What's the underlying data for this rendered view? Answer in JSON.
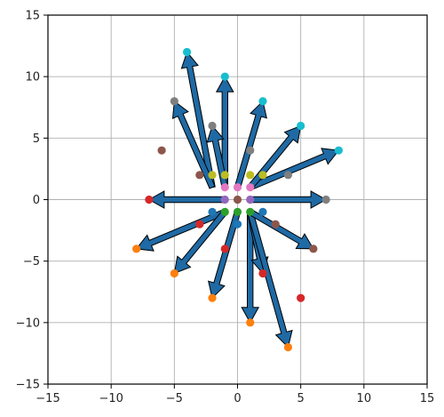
{
  "chart_data": {
    "type": "scatter",
    "subtype": "quiver",
    "title": "",
    "xlabel": "",
    "ylabel": "",
    "xlim": [
      -15,
      15
    ],
    "ylim": [
      -15,
      15
    ],
    "xticks": [
      -15,
      -10,
      -5,
      0,
      5,
      10,
      15
    ],
    "yticks": [
      -15,
      -10,
      -5,
      0,
      5,
      10,
      15
    ],
    "x_tick_labels": [
      "−15",
      "−10",
      "−5",
      "0",
      "5",
      "10",
      "15"
    ],
    "y_tick_labels": [
      "−15",
      "−10",
      "−5",
      "0",
      "5",
      "10",
      "15"
    ],
    "grid": true,
    "arrow_color": "#1f6aa5",
    "point_colors": {
      "blue": "#1f77b4",
      "orange": "#ff7f0e",
      "green": "#2ca02c",
      "red": "#d62728",
      "purple": "#9467bd",
      "brown": "#8c564b",
      "pink": "#e377c2",
      "gray": "#7f7f7f",
      "olive": "#bcbd22",
      "cyan": "#17becf"
    },
    "points": [
      {
        "x": -1,
        "y": -1,
        "color": "green"
      },
      {
        "x": 0,
        "y": -1,
        "color": "green"
      },
      {
        "x": 1,
        "y": -1,
        "color": "green"
      },
      {
        "x": -1,
        "y": 0,
        "color": "purple"
      },
      {
        "x": 0,
        "y": 0,
        "color": "brown"
      },
      {
        "x": 1,
        "y": 0,
        "color": "purple"
      },
      {
        "x": -1,
        "y": 1,
        "color": "pink"
      },
      {
        "x": 0,
        "y": 1,
        "color": "pink"
      },
      {
        "x": 1,
        "y": 1,
        "color": "pink"
      },
      {
        "x": -2,
        "y": 2,
        "color": "olive"
      },
      {
        "x": -1,
        "y": 2,
        "color": "olive"
      },
      {
        "x": 1,
        "y": 2,
        "color": "olive"
      },
      {
        "x": 2,
        "y": 2,
        "color": "olive"
      },
      {
        "x": -2,
        "y": -1,
        "color": "blue"
      },
      {
        "x": 0,
        "y": -2,
        "color": "blue"
      },
      {
        "x": 2,
        "y": -1,
        "color": "blue"
      },
      {
        "x": -3,
        "y": -2,
        "color": "red"
      },
      {
        "x": -7,
        "y": 0,
        "color": "red"
      },
      {
        "x": -1,
        "y": -4,
        "color": "red"
      },
      {
        "x": 2,
        "y": -6,
        "color": "red"
      },
      {
        "x": 5,
        "y": -8,
        "color": "red"
      },
      {
        "x": -8,
        "y": -4,
        "color": "orange"
      },
      {
        "x": -5,
        "y": -6,
        "color": "orange"
      },
      {
        "x": -2,
        "y": -8,
        "color": "orange"
      },
      {
        "x": 1,
        "y": -10,
        "color": "orange"
      },
      {
        "x": 4,
        "y": -12,
        "color": "orange"
      },
      {
        "x": -6,
        "y": 4,
        "color": "brown"
      },
      {
        "x": -3,
        "y": 2,
        "color": "brown"
      },
      {
        "x": 3,
        "y": -2,
        "color": "brown"
      },
      {
        "x": 6,
        "y": -4,
        "color": "brown"
      },
      {
        "x": -5,
        "y": 8,
        "color": "gray"
      },
      {
        "x": -2,
        "y": 6,
        "color": "gray"
      },
      {
        "x": 1,
        "y": 4,
        "color": "gray"
      },
      {
        "x": 4,
        "y": 2,
        "color": "gray"
      },
      {
        "x": 7,
        "y": 0,
        "color": "gray"
      },
      {
        "x": -4,
        "y": 12,
        "color": "cyan"
      },
      {
        "x": -1,
        "y": 10,
        "color": "cyan"
      },
      {
        "x": 2,
        "y": 8,
        "color": "cyan"
      },
      {
        "x": 5,
        "y": 6,
        "color": "cyan"
      },
      {
        "x": 8,
        "y": 4,
        "color": "cyan"
      }
    ],
    "arrows": [
      {
        "x0": -1,
        "y0": 0,
        "x1": -7,
        "y1": 0
      },
      {
        "x0": -1,
        "y0": -1,
        "x1": -8,
        "y1": -4
      },
      {
        "x0": -1,
        "y0": -1,
        "x1": -5,
        "y1": -6
      },
      {
        "x0": 0,
        "y0": -1,
        "x1": -2,
        "y1": -8
      },
      {
        "x0": 1,
        "y0": -1,
        "x1": 1,
        "y1": -10
      },
      {
        "x0": 1,
        "y0": -1,
        "x1": 2,
        "y1": -6
      },
      {
        "x0": 1,
        "y0": -1,
        "x1": 4,
        "y1": -12
      },
      {
        "x0": 1,
        "y0": -1,
        "x1": 6,
        "y1": -4
      },
      {
        "x0": 1,
        "y0": 0,
        "x1": 7,
        "y1": 0
      },
      {
        "x0": 1,
        "y0": 1,
        "x1": 8,
        "y1": 4
      },
      {
        "x0": 1,
        "y0": 1,
        "x1": 5,
        "y1": 6
      },
      {
        "x0": 0,
        "y0": 1,
        "x1": 2,
        "y1": 8
      },
      {
        "x0": -1,
        "y0": 1,
        "x1": -1,
        "y1": 10
      },
      {
        "x0": -1,
        "y0": 1,
        "x1": -2,
        "y1": 6
      },
      {
        "x0": -2,
        "y0": 1,
        "x1": -4,
        "y1": 12
      },
      {
        "x0": -2,
        "y0": 1,
        "x1": -5,
        "y1": 8
      }
    ]
  }
}
